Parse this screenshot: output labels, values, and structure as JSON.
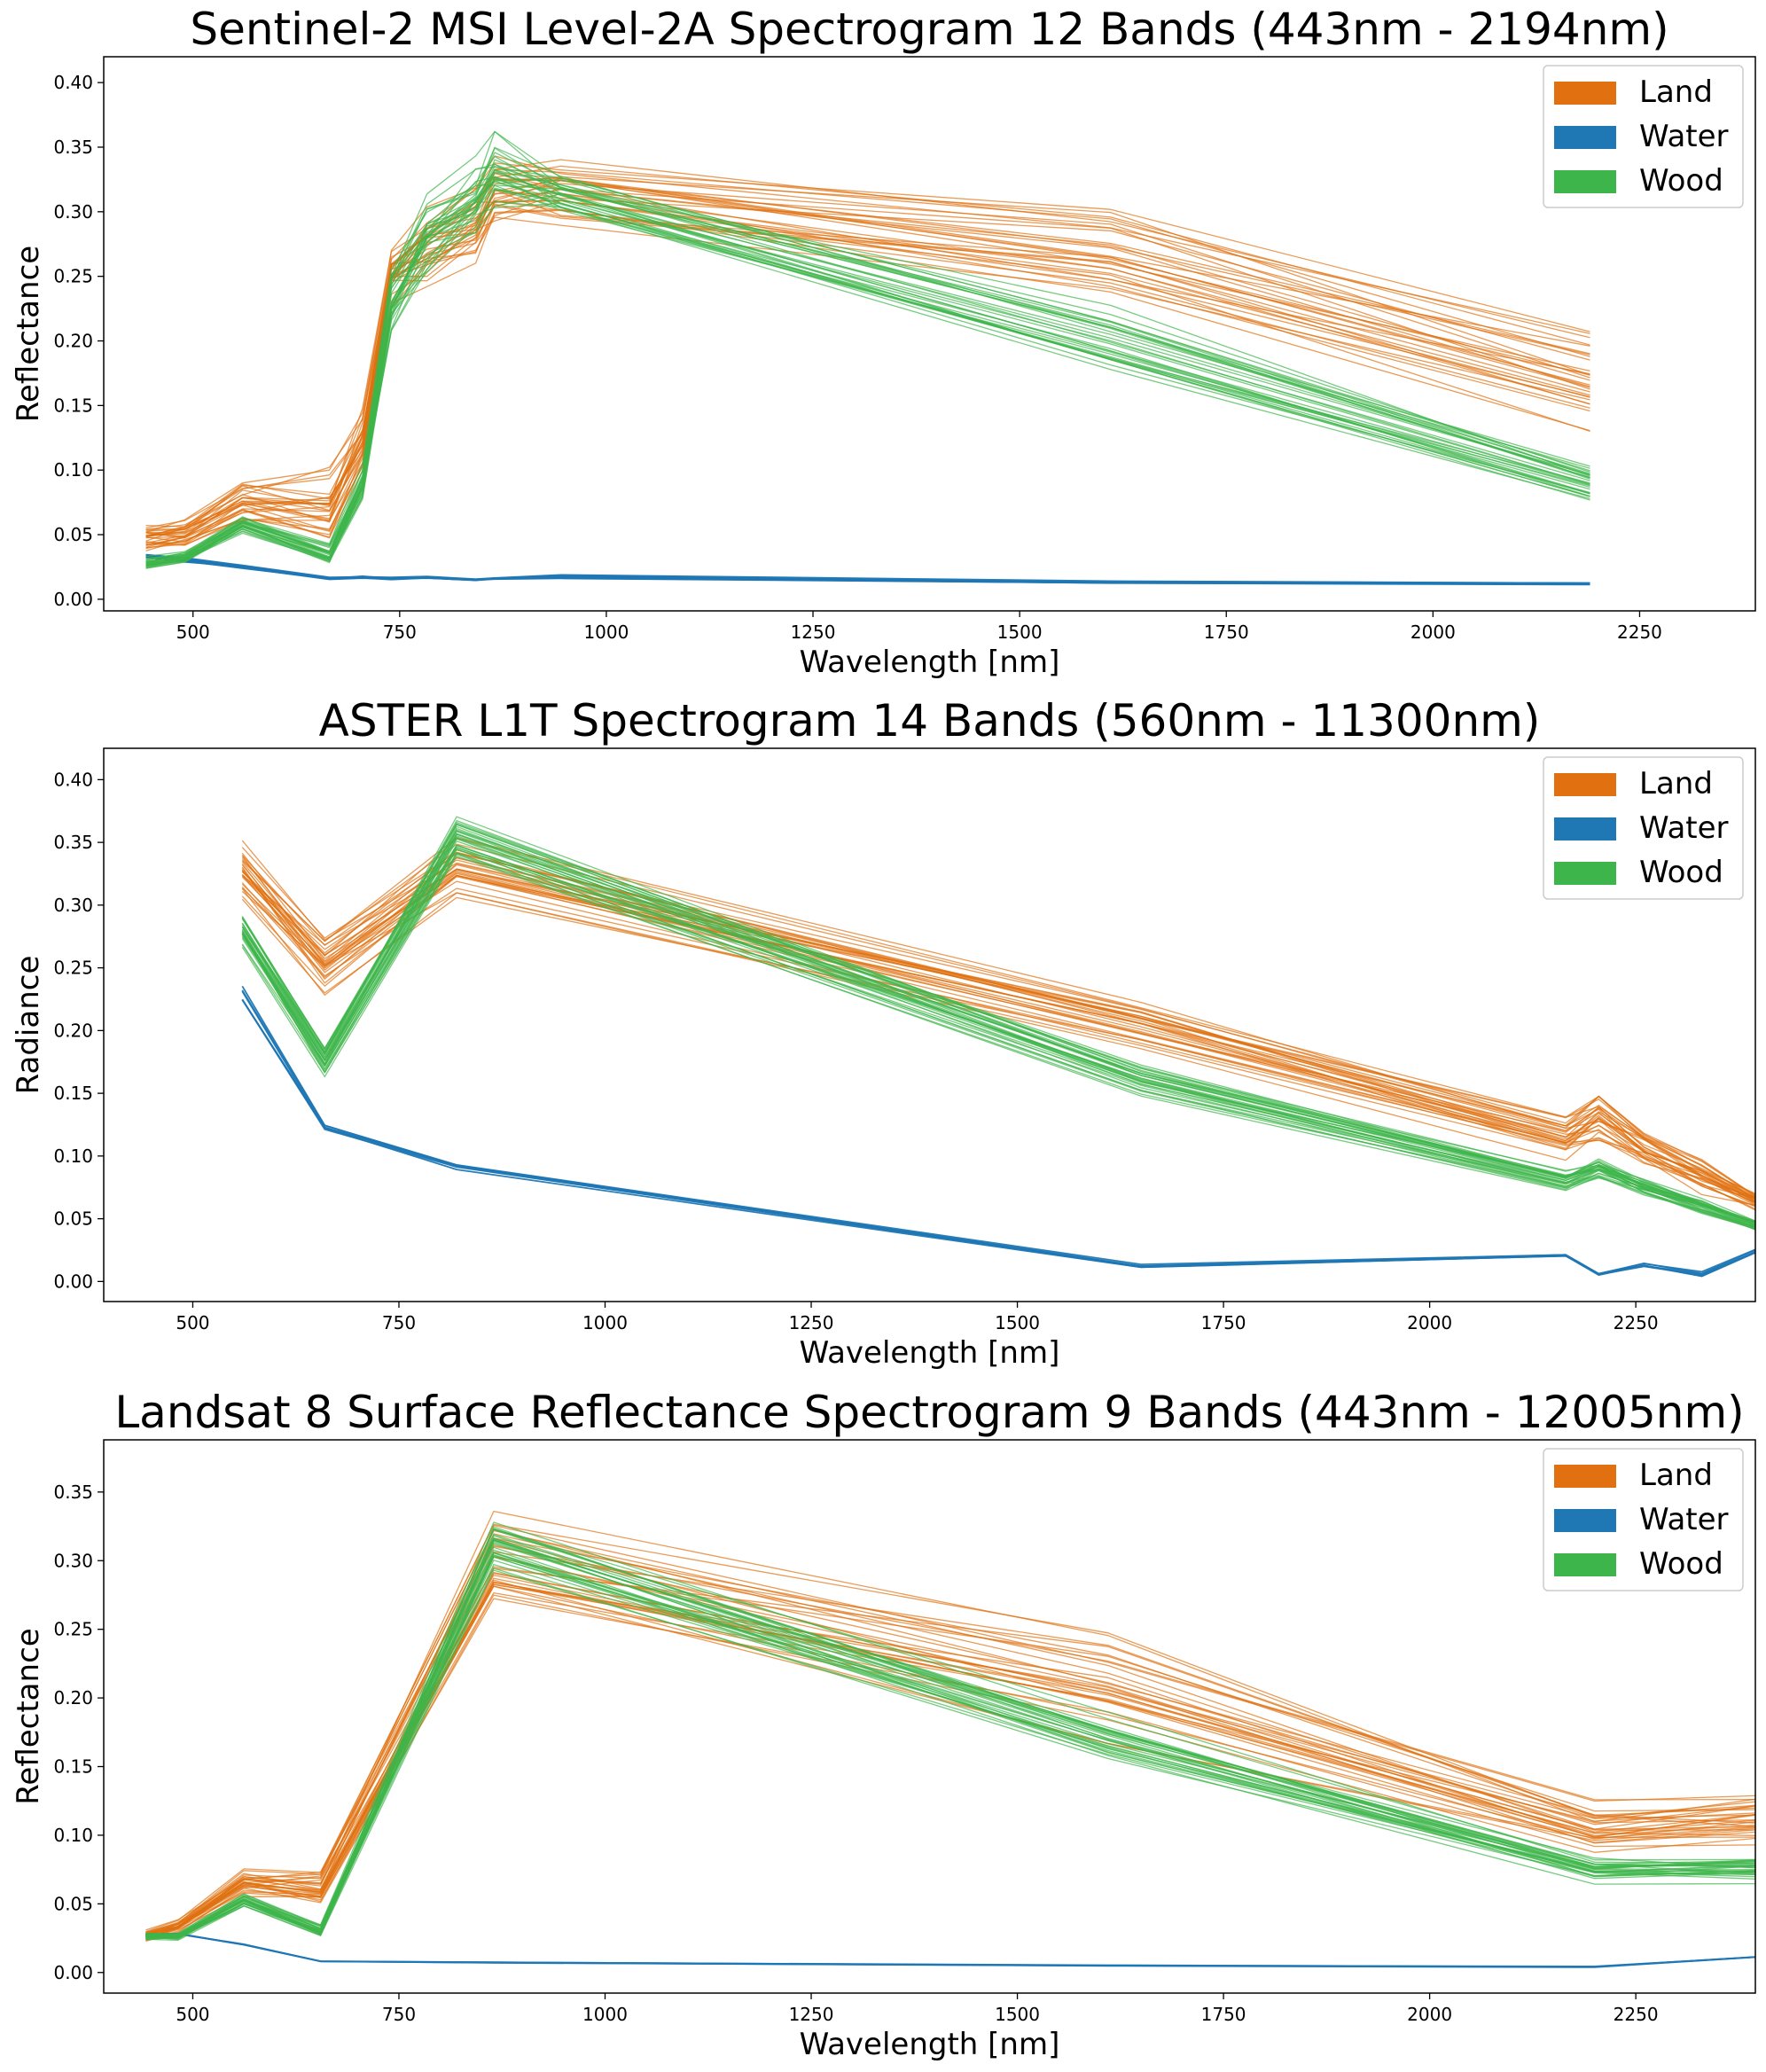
{
  "chart_data": [
    {
      "type": "line",
      "title": "Sentinel-2 MSI Level-2A Spectrogram 12 Bands (443nm - 2194nm)",
      "xlabel": "Wavelength [nm]",
      "ylabel": "Reflectance",
      "xlim": [
        392,
        2390
      ],
      "ylim": [
        -0.009,
        0.42
      ],
      "x_ticks": [
        500,
        750,
        1000,
        1250,
        1500,
        1750,
        2000,
        2250
      ],
      "y_ticks": [
        0.0,
        0.05,
        0.1,
        0.15,
        0.2,
        0.25,
        0.3,
        0.35,
        0.4
      ],
      "y_tick_labels": [
        "0.00",
        "0.05",
        "0.10",
        "0.15",
        "0.20",
        "0.25",
        "0.30",
        "0.35",
        "0.40"
      ],
      "legend": {
        "position": "top-right",
        "entries": [
          "Land",
          "Water",
          "Wood"
        ]
      },
      "grid": false,
      "x": [
        443,
        490,
        560,
        665,
        705,
        740,
        783,
        842,
        865,
        945,
        1610,
        2190
      ],
      "series": [
        {
          "name": "Land",
          "color": "#e07010",
          "line_count": 30,
          "values": [
            0.048,
            0.05,
            0.075,
            0.07,
            0.12,
            0.25,
            0.27,
            0.29,
            0.315,
            0.315,
            0.27,
            0.17
          ],
          "spread": [
            0.01,
            0.012,
            0.02,
            0.03,
            0.03,
            0.025,
            0.03,
            0.03,
            0.03,
            0.025,
            0.04,
            0.04
          ]
        },
        {
          "name": "Water",
          "color": "#1f77b4",
          "line_count": 10,
          "values": [
            0.033,
            0.03,
            0.025,
            0.016,
            0.017,
            0.016,
            0.017,
            0.015,
            0.016,
            0.017,
            0.013,
            0.012
          ],
          "spread": [
            0.002,
            0.002,
            0.002,
            0.001,
            0.001,
            0.001,
            0.001,
            0.001,
            0.001,
            0.002,
            0.001,
            0.001
          ]
        },
        {
          "name": "Wood",
          "color": "#3db54a",
          "line_count": 30,
          "values": [
            0.028,
            0.032,
            0.058,
            0.035,
            0.09,
            0.23,
            0.28,
            0.31,
            0.33,
            0.315,
            0.2,
            0.09
          ],
          "spread": [
            0.005,
            0.005,
            0.008,
            0.008,
            0.015,
            0.03,
            0.03,
            0.03,
            0.03,
            0.015,
            0.025,
            0.015
          ]
        }
      ]
    },
    {
      "type": "line",
      "title": "ASTER L1T Spectrogram 14 Bands (560nm - 11300nm)",
      "xlabel": "Wavelength [nm]",
      "ylabel": "Radiance",
      "xlim": [
        392,
        2395
      ],
      "ylim": [
        -0.016,
        0.425
      ],
      "x_ticks": [
        500,
        750,
        1000,
        1250,
        1500,
        1750,
        2000,
        2250
      ],
      "y_ticks": [
        0.0,
        0.05,
        0.1,
        0.15,
        0.2,
        0.25,
        0.3,
        0.35,
        0.4
      ],
      "y_tick_labels": [
        "0.00",
        "0.05",
        "0.10",
        "0.15",
        "0.20",
        "0.25",
        "0.30",
        "0.35",
        "0.40"
      ],
      "legend": {
        "position": "top-right",
        "entries": [
          "Land",
          "Water",
          "Wood"
        ]
      },
      "grid": false,
      "x": [
        560,
        660,
        820,
        1650,
        2165,
        2205,
        2260,
        2330,
        2395
      ],
      "series": [
        {
          "name": "Land",
          "color": "#e07010",
          "line_count": 30,
          "values": [
            0.33,
            0.255,
            0.33,
            0.205,
            0.115,
            0.13,
            0.105,
            0.085,
            0.065
          ],
          "spread": [
            0.025,
            0.025,
            0.025,
            0.018,
            0.018,
            0.018,
            0.015,
            0.015,
            0.008
          ]
        },
        {
          "name": "Water",
          "color": "#1f77b4",
          "line_count": 6,
          "values": [
            0.23,
            0.123,
            0.092,
            0.012,
            0.021,
            0.006,
            0.013,
            0.006,
            0.024
          ],
          "spread": [
            0.006,
            0.002,
            0.003,
            0.002,
            0.001,
            0.001,
            0.002,
            0.002,
            0.002
          ]
        },
        {
          "name": "Wood",
          "color": "#3db54a",
          "line_count": 30,
          "values": [
            0.28,
            0.175,
            0.355,
            0.16,
            0.08,
            0.09,
            0.075,
            0.06,
            0.045
          ],
          "spread": [
            0.012,
            0.012,
            0.018,
            0.012,
            0.008,
            0.008,
            0.006,
            0.006,
            0.004
          ]
        }
      ]
    },
    {
      "type": "line",
      "title": "Landsat 8 Surface Reflectance Spectrogram 9 Bands (443nm - 12005nm)",
      "xlabel": "Wavelength [nm]",
      "ylabel": "Reflectance",
      "xlim": [
        392,
        2395
      ],
      "ylim": [
        -0.015,
        0.388
      ],
      "x_ticks": [
        500,
        750,
        1000,
        1250,
        1500,
        1750,
        2000,
        2250
      ],
      "y_ticks": [
        0.0,
        0.05,
        0.1,
        0.15,
        0.2,
        0.25,
        0.3,
        0.35
      ],
      "y_tick_labels": [
        "0.00",
        "0.05",
        "0.10",
        "0.15",
        "0.20",
        "0.25",
        "0.30",
        "0.35"
      ],
      "legend": {
        "position": "top-right",
        "entries": [
          "Land",
          "Water",
          "Wood"
        ]
      },
      "grid": false,
      "x": [
        443,
        482,
        562,
        655,
        865,
        1610,
        2200,
        2395
      ],
      "series": [
        {
          "name": "Land",
          "color": "#e07010",
          "line_count": 30,
          "values": [
            0.027,
            0.033,
            0.065,
            0.06,
            0.3,
            0.21,
            0.105,
            0.11
          ],
          "spread": [
            0.004,
            0.006,
            0.01,
            0.015,
            0.035,
            0.04,
            0.02,
            0.02
          ]
        },
        {
          "name": "Water",
          "color": "#1f77b4",
          "line_count": 4,
          "values": [
            0.027,
            0.028,
            0.02,
            0.008,
            0.007,
            0.005,
            0.004,
            0.011
          ],
          "spread": [
            0.001,
            0.001,
            0.001,
            0.0005,
            0.0005,
            0.0005,
            0.0005,
            0.0005
          ]
        },
        {
          "name": "Wood",
          "color": "#3db54a",
          "line_count": 30,
          "values": [
            0.026,
            0.026,
            0.052,
            0.03,
            0.31,
            0.17,
            0.075,
            0.075
          ],
          "spread": [
            0.003,
            0.003,
            0.005,
            0.005,
            0.025,
            0.02,
            0.01,
            0.01
          ]
        }
      ]
    }
  ]
}
